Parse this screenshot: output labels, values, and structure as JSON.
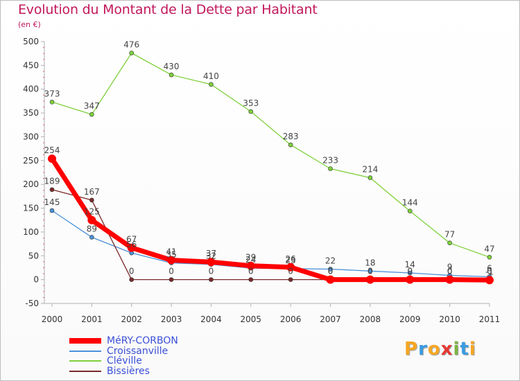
{
  "title": "Evolution du Montant de la Dette par Habitant",
  "subtitle": "(en €)",
  "logo": {
    "letters": [
      "P",
      "r",
      "o",
      "x",
      "i",
      "t",
      "i"
    ],
    "colors": [
      "#f5a623",
      "#3a9be0",
      "#f5a623",
      "#e53935",
      "#7cb342",
      "#3a9be0",
      "#f5a623"
    ]
  },
  "chart_data": {
    "type": "line",
    "title": "Evolution du Montant de la Dette par Habitant",
    "ylabel": "(en €)",
    "xlabel": "",
    "x": [
      "2000",
      "2001",
      "2002",
      "2003",
      "2004",
      "2005",
      "2006",
      "2007",
      "2008",
      "2009",
      "2010",
      "2011"
    ],
    "ylim": [
      -50,
      500
    ],
    "yticks": [
      "-50",
      "0",
      "50",
      "100",
      "150",
      "200",
      "250",
      "300",
      "350",
      "400",
      "450",
      "500"
    ],
    "grid": false,
    "legend_position": "bottom-left",
    "series": [
      {
        "name": "MéRY-CORBON",
        "color": "#ff0000",
        "values": [
          254,
          125,
          67,
          41,
          37,
          29,
          26,
          0,
          0,
          0,
          0,
          -1
        ],
        "labels": [
          "254",
          "125",
          "67",
          "41",
          "37",
          "29",
          "26",
          "0",
          "0",
          "0",
          "0",
          "-1"
        ]
      },
      {
        "name": "Croissanville",
        "color": "#4a90d9",
        "values": [
          145,
          89,
          56,
          35,
          32,
          24,
          23,
          22,
          18,
          14,
          9,
          6
        ],
        "labels": [
          "145",
          "89",
          "56",
          "35",
          "32",
          "24",
          "23",
          "22",
          "18",
          "14",
          "9",
          "6"
        ]
      },
      {
        "name": "Cléville",
        "color": "#7ed03a",
        "values": [
          373,
          347,
          476,
          430,
          410,
          353,
          283,
          233,
          214,
          144,
          77,
          47
        ],
        "labels": [
          "373",
          "347",
          "476",
          "430",
          "410",
          "353",
          "283",
          "233",
          "214",
          "144",
          "77",
          "47"
        ]
      },
      {
        "name": "Bissières",
        "color": "#7a2a2a",
        "values": [
          189,
          167,
          0,
          0,
          0,
          0,
          0,
          0,
          0,
          0,
          0,
          0
        ],
        "labels": [
          "189",
          "167",
          "0",
          "0",
          "0",
          "0",
          "0",
          "0",
          "0",
          "0",
          "0",
          "0"
        ]
      }
    ]
  }
}
